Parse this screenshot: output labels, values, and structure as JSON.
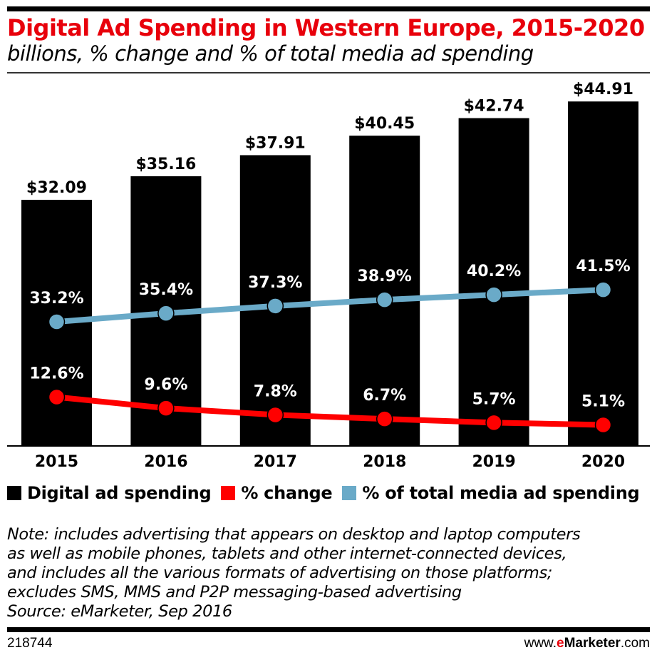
{
  "title": "Digital Ad Spending in Western Europe, 2015-2020",
  "subtitle": "billions, % change and % of total media ad spending",
  "chart_data": {
    "type": "bar",
    "categories": [
      "2015",
      "2016",
      "2017",
      "2018",
      "2019",
      "2020"
    ],
    "series": [
      {
        "name": "Digital ad spending",
        "type": "bar",
        "color": "#000000",
        "values": [
          32.09,
          35.16,
          37.91,
          40.45,
          42.74,
          44.91
        ],
        "labels": [
          "$32.09",
          "$35.16",
          "$37.91",
          "$40.45",
          "$42.74",
          "$44.91"
        ]
      },
      {
        "name": "% change",
        "type": "line",
        "color": "#ff0000",
        "values": [
          12.6,
          9.6,
          7.8,
          6.7,
          5.7,
          5.1
        ],
        "labels": [
          "12.6%",
          "9.6%",
          "7.8%",
          "6.7%",
          "5.7%",
          "5.1%"
        ]
      },
      {
        "name": "% of total media ad spending",
        "type": "line",
        "color": "#6aaac8",
        "values": [
          33.2,
          35.4,
          37.3,
          38.9,
          40.2,
          41.5
        ],
        "labels": [
          "33.2%",
          "35.4%",
          "37.3%",
          "38.9%",
          "40.2%",
          "41.5%"
        ]
      }
    ],
    "legend": "bottom"
  },
  "legend": [
    "Digital ad spending",
    "% change",
    "% of total media ad spending"
  ],
  "note": [
    "Note: includes advertising that appears on desktop and laptop computers",
    "as well as mobile phones, tablets and other internet-connected devices,",
    "and includes all the various formats of advertising on those platforms;",
    "excludes SMS, MMS and P2P messaging-based advertising",
    "Source: eMarketer, Sep 2016"
  ],
  "footer": {
    "id": "218744",
    "site_pre": "www.",
    "site_e": "e",
    "site_brand": "Marketer",
    ".com": ".com",
    "site_post": ".com"
  }
}
